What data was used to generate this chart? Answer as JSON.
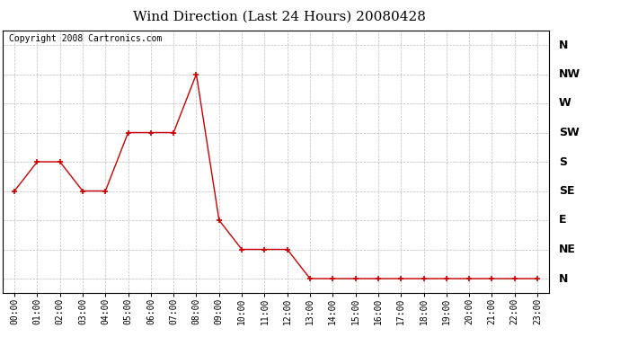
{
  "title": "Wind Direction (Last 24 Hours) 20080428",
  "copyright": "Copyright 2008 Cartronics.com",
  "x_labels": [
    "00:00",
    "01:00",
    "02:00",
    "03:00",
    "04:00",
    "05:00",
    "06:00",
    "07:00",
    "08:00",
    "09:00",
    "10:00",
    "11:00",
    "12:00",
    "13:00",
    "14:00",
    "15:00",
    "16:00",
    "17:00",
    "18:00",
    "19:00",
    "20:00",
    "21:00",
    "22:00",
    "23:00"
  ],
  "y_labels": [
    "N",
    "NE",
    "E",
    "SE",
    "S",
    "SW",
    "W",
    "NW",
    "N"
  ],
  "y_values": [
    0,
    1,
    2,
    3,
    4,
    5,
    6,
    7,
    8
  ],
  "data_x": [
    0,
    1,
    2,
    3,
    4,
    5,
    6,
    7,
    8,
    9,
    10,
    11,
    12,
    13,
    14,
    15,
    16,
    17,
    18,
    19,
    20,
    21,
    22,
    23
  ],
  "data_y": [
    3,
    4,
    4,
    3,
    3,
    5,
    5,
    5,
    7,
    2,
    1,
    1,
    1,
    0,
    0,
    0,
    0,
    0,
    0,
    0,
    0,
    0,
    0,
    0
  ],
  "line_color": "#cc0000",
  "marker": "+",
  "marker_size": 5,
  "background_color": "#ffffff",
  "grid_color": "#bbbbbb",
  "title_fontsize": 11,
  "copyright_fontsize": 7,
  "tick_fontsize": 7,
  "ylabel_fontsize": 9
}
